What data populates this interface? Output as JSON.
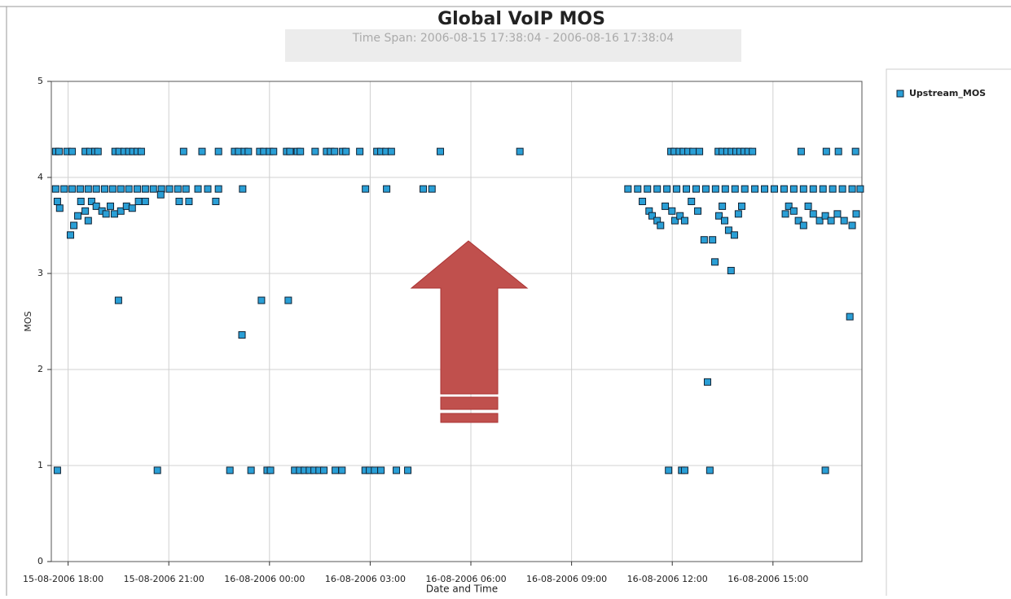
{
  "chart_data": {
    "type": "scatter",
    "title": "Global VoIP MOS",
    "subtitle": "Time Span: 2006-08-15 17:38:04 - 2006-08-16 17:38:04",
    "x_label": "Date and Time",
    "y_label": "MOS",
    "xlim": [
      17.5,
      41.65
    ],
    "ylim": [
      0,
      5
    ],
    "xticks": [
      {
        "value": 18,
        "label": "15-08-2006 18:00"
      },
      {
        "value": 21,
        "label": "15-08-2006 21:00"
      },
      {
        "value": 24,
        "label": "16-08-2006 00:00"
      },
      {
        "value": 27,
        "label": "16-08-2006 03:00"
      },
      {
        "value": 30,
        "label": "16-08-2006 06:00"
      },
      {
        "value": 33,
        "label": "16-08-2006 09:00"
      },
      {
        "value": 36,
        "label": "16-08-2006 12:00"
      },
      {
        "value": 39,
        "label": "16-08-2006 15:00"
      }
    ],
    "yticks": [
      0,
      1,
      2,
      3,
      4,
      5
    ],
    "grid": true,
    "legend": "right",
    "series": [
      {
        "name": "Upstream_MOS",
        "color": "#2a9fd6",
        "x": [
          17.63,
          17.73,
          17.97,
          18.12,
          18.51,
          18.65,
          18.8,
          18.89,
          19.4,
          19.52,
          19.67,
          19.81,
          19.93,
          20.06,
          20.18,
          21.44,
          21.99,
          22.48,
          22.96,
          23.08,
          23.25,
          23.37,
          23.71,
          23.83,
          24.0,
          24.12,
          24.51,
          24.61,
          24.83,
          24.92,
          25.36,
          25.7,
          25.82,
          25.94,
          26.18,
          26.28,
          26.69,
          27.2,
          27.32,
          27.47,
          27.63,
          29.09,
          31.46,
          35.96,
          36.06,
          36.21,
          36.33,
          36.47,
          36.62,
          36.81,
          37.37,
          37.49,
          37.63,
          37.76,
          37.9,
          38.02,
          38.14,
          38.26,
          38.39,
          39.84,
          40.59,
          40.95,
          41.46,
          17.63,
          17.88,
          18.12,
          18.36,
          18.6,
          18.84,
          19.09,
          19.33,
          19.57,
          19.81,
          20.06,
          20.3,
          20.54,
          20.78,
          21.02,
          21.27,
          21.51,
          21.87,
          22.16,
          22.48,
          23.2,
          26.86,
          27.49,
          28.58,
          28.84,
          34.68,
          34.97,
          35.26,
          35.55,
          35.84,
          36.13,
          36.42,
          36.71,
          37.0,
          37.29,
          37.58,
          37.87,
          38.16,
          38.46,
          38.75,
          39.04,
          39.33,
          39.62,
          39.91,
          40.2,
          40.49,
          40.78,
          41.07,
          41.36,
          41.6,
          17.68,
          17.75,
          18.07,
          18.17,
          18.29,
          18.38,
          18.51,
          18.6,
          18.7,
          18.84,
          19.01,
          19.13,
          19.26,
          19.38,
          19.5,
          19.57,
          19.74,
          19.91,
          20.1,
          20.3,
          20.76,
          21.31,
          21.6,
          22.4,
          23.18,
          23.76,
          24.56,
          35.11,
          35.31,
          35.4,
          35.55,
          35.65,
          35.79,
          35.99,
          36.08,
          36.23,
          36.37,
          36.57,
          36.76,
          36.95,
          37.05,
          37.2,
          37.27,
          37.39,
          37.49,
          37.56,
          37.68,
          37.75,
          37.85,
          37.97,
          38.07,
          39.37,
          39.47,
          39.62,
          39.76,
          39.91,
          40.05,
          40.2,
          40.39,
          40.56,
          40.73,
          40.92,
          41.12,
          41.29,
          41.36,
          41.48,
          17.68,
          20.66,
          22.82,
          23.45,
          23.93,
          24.03,
          24.75,
          24.9,
          25.04,
          25.19,
          25.33,
          25.48,
          25.62,
          25.96,
          26.16,
          26.85,
          26.98,
          27.13,
          27.32,
          27.78,
          28.12,
          35.89,
          36.28,
          36.37,
          37.12,
          40.56
        ],
        "values": [
          4.27,
          4.27,
          4.27,
          4.27,
          4.27,
          4.27,
          4.27,
          4.27,
          4.27,
          4.27,
          4.27,
          4.27,
          4.27,
          4.27,
          4.27,
          4.27,
          4.27,
          4.27,
          4.27,
          4.27,
          4.27,
          4.27,
          4.27,
          4.27,
          4.27,
          4.27,
          4.27,
          4.27,
          4.27,
          4.27,
          4.27,
          4.27,
          4.27,
          4.27,
          4.27,
          4.27,
          4.27,
          4.27,
          4.27,
          4.27,
          4.27,
          4.27,
          4.27,
          4.27,
          4.27,
          4.27,
          4.27,
          4.27,
          4.27,
          4.27,
          4.27,
          4.27,
          4.27,
          4.27,
          4.27,
          4.27,
          4.27,
          4.27,
          4.27,
          4.27,
          4.27,
          4.27,
          4.27,
          3.88,
          3.88,
          3.88,
          3.88,
          3.88,
          3.88,
          3.88,
          3.88,
          3.88,
          3.88,
          3.88,
          3.88,
          3.88,
          3.88,
          3.88,
          3.88,
          3.88,
          3.88,
          3.88,
          3.88,
          3.88,
          3.88,
          3.88,
          3.88,
          3.88,
          3.88,
          3.88,
          3.88,
          3.88,
          3.88,
          3.88,
          3.88,
          3.88,
          3.88,
          3.88,
          3.88,
          3.88,
          3.88,
          3.88,
          3.88,
          3.88,
          3.88,
          3.88,
          3.88,
          3.88,
          3.88,
          3.88,
          3.88,
          3.88,
          3.88,
          3.75,
          3.68,
          3.4,
          3.5,
          3.6,
          3.75,
          3.65,
          3.55,
          3.75,
          3.7,
          3.65,
          3.62,
          3.7,
          3.62,
          2.72,
          3.65,
          3.7,
          3.68,
          3.75,
          3.75,
          3.82,
          3.75,
          3.75,
          3.75,
          2.36,
          2.72,
          2.72,
          3.75,
          3.65,
          3.6,
          3.55,
          3.5,
          3.7,
          3.65,
          3.55,
          3.6,
          3.55,
          3.75,
          3.65,
          3.35,
          1.87,
          3.35,
          3.12,
          3.6,
          3.7,
          3.55,
          3.45,
          3.03,
          3.4,
          3.62,
          3.7,
          3.62,
          3.7,
          3.65,
          3.55,
          3.5,
          3.7,
          3.62,
          3.55,
          3.6,
          3.55,
          3.62,
          3.55,
          2.55,
          3.5,
          3.62,
          0.95,
          0.95,
          0.95,
          0.95,
          0.95,
          0.95,
          0.95,
          0.95,
          0.95,
          0.95,
          0.95,
          0.95,
          0.95,
          0.95,
          0.95,
          0.95,
          0.95,
          0.95,
          0.95,
          0.95,
          0.95,
          0.95,
          0.95,
          0.95,
          0.95,
          0.95
        ]
      }
    ]
  }
}
